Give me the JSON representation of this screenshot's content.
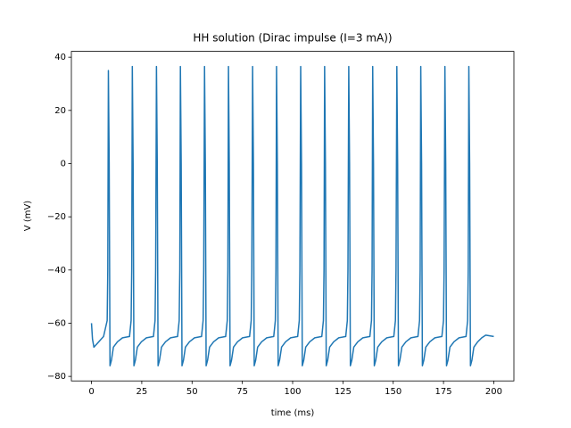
{
  "chart_data": {
    "type": "line",
    "title": "HH solution (Dirac impulse (I=3 mA))",
    "x_label": "time (ms)",
    "y_label": "V (mV)",
    "xlim": [
      -10,
      210
    ],
    "ylim": [
      -81.7,
      42.2
    ],
    "xticks": [
      0,
      25,
      50,
      75,
      100,
      125,
      150,
      175,
      200
    ],
    "yticks": [
      {
        "value": -80,
        "label": "−80"
      },
      {
        "value": -60,
        "label": "−60"
      },
      {
        "value": -40,
        "label": "−40"
      },
      {
        "value": -20,
        "label": "−20"
      },
      0,
      20,
      40
    ],
    "grid": false,
    "x": [
      0,
      0.5,
      1.2,
      3,
      6,
      7.8,
      8.1,
      8.4,
      8.8,
      9.2,
      9.9,
      10.9,
      12.9,
      15.4,
      18.9,
      19.7,
      20.0,
      20.3,
      20.7,
      21.1,
      21.8,
      22.8,
      24.8,
      27.3,
      30.8,
      31.6,
      31.9,
      32.3,
      32.7,
      33.1,
      33.8,
      34.8,
      36.8,
      39.3,
      42.8,
      43.6,
      43.9,
      44.2,
      44.6,
      45.0,
      45.7,
      46.7,
      48.7,
      51.2,
      54.7,
      55.5,
      55.8,
      56.2,
      56.6,
      57.0,
      57.7,
      58.7,
      60.7,
      63.2,
      66.7,
      67.5,
      67.8,
      68.1,
      68.5,
      68.9,
      69.6,
      70.6,
      72.6,
      75.1,
      78.6,
      79.4,
      79.7,
      80.1,
      80.5,
      80.9,
      81.6,
      82.6,
      84.6,
      87.1,
      90.6,
      91.4,
      91.7,
      92.0,
      92.4,
      92.8,
      93.5,
      94.5,
      96.5,
      99.0,
      102.5,
      103.3,
      103.6,
      104.0,
      104.4,
      104.8,
      105.5,
      106.5,
      108.5,
      111.0,
      114.5,
      115.3,
      115.6,
      115.9,
      116.3,
      116.7,
      117.4,
      118.4,
      120.4,
      122.9,
      126.4,
      127.2,
      127.5,
      127.9,
      128.3,
      128.7,
      129.4,
      130.4,
      132.4,
      134.9,
      138.4,
      139.2,
      139.5,
      139.8,
      140.2,
      140.6,
      141.3,
      142.3,
      144.3,
      146.8,
      150.3,
      151.1,
      151.4,
      151.8,
      152.2,
      152.6,
      153.3,
      154.3,
      156.3,
      158.8,
      162.3,
      163.1,
      163.4,
      163.7,
      164.1,
      164.5,
      165.2,
      166.2,
      168.2,
      170.7,
      174.2,
      175.0,
      175.3,
      175.7,
      176.1,
      176.5,
      177.2,
      178.2,
      180.2,
      182.7,
      186.2,
      187.0,
      187.3,
      187.6,
      188.0,
      188.4,
      189.1,
      190.1,
      192.0,
      194.0,
      196.0,
      200
    ],
    "series": [
      {
        "color": "#1f77b4",
        "values": [
          -60,
          -66,
          -69,
          -67.5,
          -65,
          -59,
          -40,
          35,
          0,
          -76,
          -74,
          -69,
          -67,
          -65.5,
          -65,
          -59,
          -40,
          36.5,
          0,
          -76,
          -74,
          -69,
          -67,
          -65.5,
          -65,
          -59,
          -40,
          36.5,
          0,
          -76,
          -74,
          -69,
          -67,
          -65.5,
          -65,
          -59,
          -40,
          36.5,
          0,
          -76,
          -74,
          -69,
          -67,
          -65.5,
          -65,
          -59,
          -40,
          36.5,
          0,
          -76,
          -74,
          -69,
          -67,
          -65.5,
          -65,
          -59,
          -40,
          36.5,
          0,
          -76,
          -74,
          -69,
          -67,
          -65.5,
          -65,
          -59,
          -40,
          36.5,
          0,
          -76,
          -74,
          -69,
          -67,
          -65.5,
          -65,
          -59,
          -40,
          36.5,
          0,
          -76,
          -74,
          -69,
          -67,
          -65.5,
          -65,
          -59,
          -40,
          36.5,
          0,
          -76,
          -74,
          -69,
          -67,
          -65.5,
          -65,
          -59,
          -40,
          36.5,
          0,
          -76,
          -74,
          -69,
          -67,
          -65.5,
          -65,
          -59,
          -40,
          36.5,
          0,
          -76,
          -74,
          -69,
          -67,
          -65.5,
          -65,
          -59,
          -40,
          36.5,
          0,
          -76,
          -74,
          -69,
          -67,
          -65.5,
          -65,
          -59,
          -40,
          36.5,
          0,
          -76,
          -74,
          -69,
          -67,
          -65.5,
          -65,
          -59,
          -40,
          36.5,
          0,
          -76,
          -74,
          -69,
          -67,
          -65.5,
          -65,
          -59,
          -40,
          36.5,
          0,
          -76,
          -74,
          -69,
          -67,
          -65.5,
          -65,
          -59,
          -40,
          36.5,
          0,
          -76,
          -74,
          -69,
          -67,
          -65.5,
          -64.5,
          -65
        ]
      }
    ]
  }
}
